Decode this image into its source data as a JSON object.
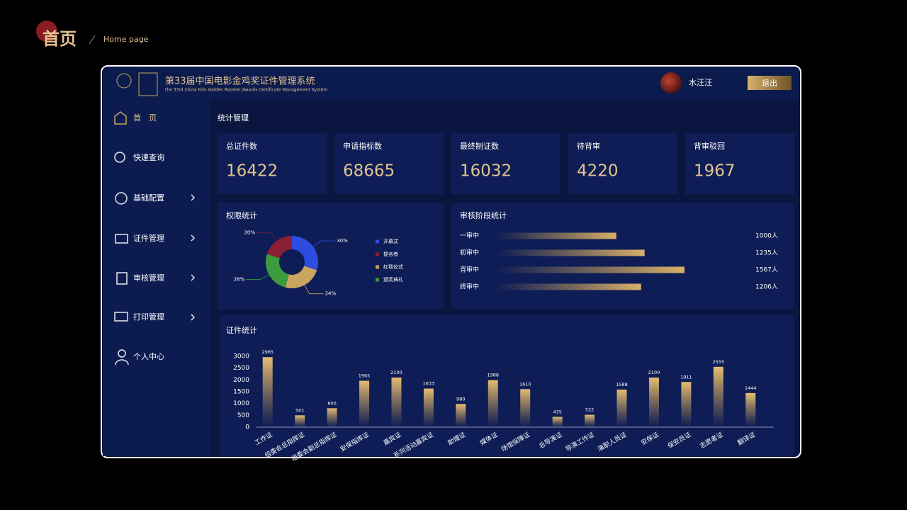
{
  "header": {
    "title": "首页",
    "subtitle": "Home page"
  },
  "app": {
    "title": "第33届中国电影金鸡奖证件管理系统",
    "subtitle": "the 33rd China Film Golden Rooster Awards Certificate Management System",
    "user": "水汪汪",
    "logout": "退出"
  },
  "nav": [
    "首　页",
    "快速查询",
    "基础配置",
    "证件管理",
    "审核管理",
    "打印管理",
    "个人中心"
  ],
  "section_title": "统计管理",
  "stats": [
    {
      "label": "总证件数",
      "value": 16422
    },
    {
      "label": "申请指标数",
      "value": 68665
    },
    {
      "label": "最终制证数",
      "value": 16032
    },
    {
      "label": "待背审",
      "value": 4220
    },
    {
      "label": "背审驳回",
      "value": 1967
    }
  ],
  "permission_chart": {
    "type": "pie",
    "title": "权限统计",
    "categories": [
      "开幕式",
      "提名者",
      "红毯仪式",
      "颁奖典礼"
    ],
    "values": [
      30,
      20,
      24,
      26
    ],
    "value_labels": [
      "30%",
      "20%",
      "24%",
      "26%"
    ],
    "colors": [
      "#2d4ce0",
      "#8c1f33",
      "#c9a561",
      "#3c9a3f"
    ]
  },
  "review_chart": {
    "type": "bar",
    "title": "审核阶段统计",
    "categories": [
      "一审中",
      "初审中",
      "背审中",
      "终审中"
    ],
    "values": [
      1000,
      1235,
      1567,
      1206
    ],
    "value_labels": [
      "1000人",
      "1235人",
      "1567人",
      "1206人"
    ]
  },
  "cert_chart": {
    "type": "bar",
    "title": "证件统计",
    "categories": [
      "工作证",
      "组委会总指挥证",
      "组委会副总指挥证",
      "安保指挥证",
      "嘉宾证",
      "系列活动嘉宾证",
      "助理证",
      "媒体证",
      "场馆保障证",
      "总导演证",
      "导演工作证",
      "演职人员证",
      "安保证",
      "保安员证",
      "志愿者证",
      "翻译证"
    ],
    "values": [
      2965,
      501,
      800,
      1965,
      2100,
      1633,
      980,
      1988,
      1610,
      435,
      522,
      1588,
      2100,
      1911,
      2555,
      1444
    ],
    "ylim": [
      0,
      3000
    ],
    "yticks": [
      0,
      500,
      1000,
      1500,
      2000,
      2500,
      3000
    ]
  }
}
